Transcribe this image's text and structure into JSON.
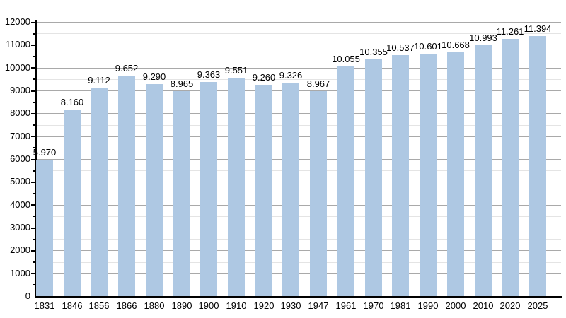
{
  "chart_data": {
    "type": "bar",
    "title": "",
    "xlabel": "",
    "ylabel": "",
    "categories": [
      "1831",
      "1846",
      "1856",
      "1866",
      "1880",
      "1890",
      "1900",
      "1910",
      "1920",
      "1930",
      "1947",
      "1961",
      "1970",
      "1981",
      "1990",
      "2000",
      "2010",
      "2020",
      "2025"
    ],
    "values": [
      5970,
      8160,
      9112,
      9652,
      9290,
      8965,
      9363,
      9551,
      9260,
      9326,
      8967,
      10055,
      10355,
      10537,
      10601,
      10668,
      10993,
      11261,
      11394
    ],
    "value_labels": [
      "5.970",
      "8.160",
      "9.112",
      "9.652",
      "9.290",
      "8.965",
      "9.363",
      "9.551",
      "9.260",
      "9.326",
      "8.967",
      "10.055",
      "10.355",
      "10.537",
      "10.601",
      "10.668",
      "10.993",
      "11.261",
      "11.394"
    ],
    "ylim": [
      0,
      12000
    ],
    "y_major_step": 1000,
    "y_minor_step": 500,
    "y_tick_labels": [
      "0",
      "1000",
      "2000",
      "3000",
      "4000",
      "5000",
      "6000",
      "7000",
      "8000",
      "9000",
      "10000",
      "11000",
      "12000"
    ],
    "grid": "on",
    "legend": "none",
    "colors": {
      "bar_fill": "#aec8e3",
      "axis": "#000000",
      "grid_major": "#a9a9a9",
      "grid_minor": "#e4e4e4",
      "text": "#000000",
      "background": "#ffffff"
    }
  }
}
